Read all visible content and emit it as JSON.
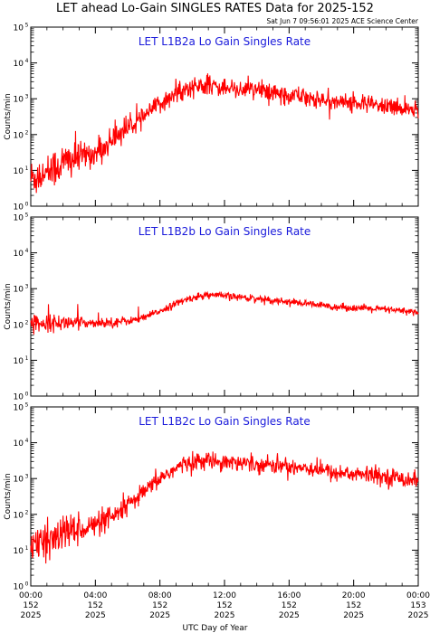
{
  "header": {
    "title": "LET ahead Lo-Gain SINGLES RATES Data for 2025-152",
    "timestamp": "Sat Jun  7 09:56:01 2025 ACE Science Center"
  },
  "colors": {
    "series": "#ff0000",
    "panel_label": "#1a1adb",
    "axes": "#000000"
  },
  "chart_data": {
    "type": "line",
    "shared_x": {
      "label": "UTC Day of Year",
      "range": [
        "00:00",
        "24:00"
      ],
      "tick_values_hours": [
        0,
        4,
        8,
        12,
        16,
        20,
        24
      ],
      "tick_labels": [
        {
          "time": "00:00",
          "day": "152",
          "year": "2025"
        },
        {
          "time": "04:00",
          "day": "152",
          "year": "2025"
        },
        {
          "time": "08:00",
          "day": "152",
          "year": "2025"
        },
        {
          "time": "12:00",
          "day": "152",
          "year": "2025"
        },
        {
          "time": "16:00",
          "day": "152",
          "year": "2025"
        },
        {
          "time": "20:00",
          "day": "152",
          "year": "2025"
        },
        {
          "time": "00:00",
          "day": "153",
          "year": "2025"
        }
      ]
    },
    "y_axis": {
      "label": "Counts/min",
      "scale": "log",
      "range": [
        1,
        100000
      ],
      "tick_base": "10",
      "tick_exponents": [
        "0",
        "1",
        "2",
        "3",
        "4",
        "5"
      ]
    },
    "panels": [
      {
        "label": "LET L1B2a Lo Gain Singles Rate",
        "noise": 0.13,
        "points": [
          [
            0,
            6
          ],
          [
            0.5,
            7
          ],
          [
            1,
            9
          ],
          [
            1.5,
            12
          ],
          [
            2,
            16
          ],
          [
            2.5,
            20
          ],
          [
            3,
            24
          ],
          [
            3.5,
            28
          ],
          [
            4,
            30
          ],
          [
            4.5,
            40
          ],
          [
            5,
            70
          ],
          [
            5.5,
            110
          ],
          [
            6,
            160
          ],
          [
            6.5,
            200
          ],
          [
            7,
            300
          ],
          [
            7.5,
            500
          ],
          [
            8,
            700
          ],
          [
            8.5,
            1000
          ],
          [
            9,
            1400
          ],
          [
            9.5,
            1800
          ],
          [
            10,
            2100
          ],
          [
            10.5,
            2300
          ],
          [
            11,
            2300
          ],
          [
            11.5,
            2200
          ],
          [
            12,
            2100
          ],
          [
            13,
            1900
          ],
          [
            14,
            1700
          ],
          [
            15,
            1500
          ],
          [
            16,
            1300
          ],
          [
            17,
            1200
          ],
          [
            18,
            900
          ],
          [
            19,
            850
          ],
          [
            20,
            750
          ],
          [
            21,
            700
          ],
          [
            22,
            600
          ],
          [
            23,
            560
          ],
          [
            24,
            500
          ]
        ]
      },
      {
        "label": "LET L1B2b Lo Gain Singles Rate",
        "noise": 0.05,
        "points": [
          [
            0,
            110
          ],
          [
            1,
            110
          ],
          [
            2,
            112
          ],
          [
            3,
            112
          ],
          [
            4,
            112
          ],
          [
            5,
            115
          ],
          [
            6,
            125
          ],
          [
            6.5,
            135
          ],
          [
            7,
            150
          ],
          [
            7.5,
            190
          ],
          [
            8,
            240
          ],
          [
            8.5,
            300
          ],
          [
            9,
            380
          ],
          [
            9.5,
            470
          ],
          [
            10,
            550
          ],
          [
            10.5,
            620
          ],
          [
            11,
            660
          ],
          [
            11.5,
            650
          ],
          [
            12,
            620
          ],
          [
            13,
            580
          ],
          [
            14,
            530
          ],
          [
            15,
            480
          ],
          [
            16,
            430
          ],
          [
            17,
            380
          ],
          [
            18,
            340
          ],
          [
            19,
            310
          ],
          [
            20,
            290
          ],
          [
            21,
            275
          ],
          [
            22,
            260
          ],
          [
            23,
            240
          ],
          [
            24,
            220
          ]
        ]
      },
      {
        "label": "LET L1B2c Lo Gain Singles Rate",
        "noise": 0.12,
        "points": [
          [
            0,
            12
          ],
          [
            0.5,
            14
          ],
          [
            1,
            17
          ],
          [
            1.5,
            22
          ],
          [
            2,
            28
          ],
          [
            2.5,
            34
          ],
          [
            3,
            40
          ],
          [
            3.5,
            45
          ],
          [
            4,
            50
          ],
          [
            4.5,
            60
          ],
          [
            5,
            75
          ],
          [
            5.5,
            110
          ],
          [
            6,
            180
          ],
          [
            6.5,
            260
          ],
          [
            7,
            400
          ],
          [
            7.5,
            650
          ],
          [
            8,
            1000
          ],
          [
            8.5,
            1400
          ],
          [
            9,
            1900
          ],
          [
            9.5,
            2500
          ],
          [
            10,
            2900
          ],
          [
            10.5,
            3100
          ],
          [
            11,
            3200
          ],
          [
            11.5,
            3100
          ],
          [
            12,
            3000
          ],
          [
            13,
            2800
          ],
          [
            14,
            2600
          ],
          [
            15,
            2400
          ],
          [
            16,
            2200
          ],
          [
            17,
            2000
          ],
          [
            18,
            1800
          ],
          [
            18.5,
            1500
          ],
          [
            19,
            1450
          ],
          [
            20,
            1350
          ],
          [
            21,
            1250
          ],
          [
            22,
            1150
          ],
          [
            23,
            1000
          ],
          [
            24,
            900
          ]
        ]
      }
    ]
  }
}
